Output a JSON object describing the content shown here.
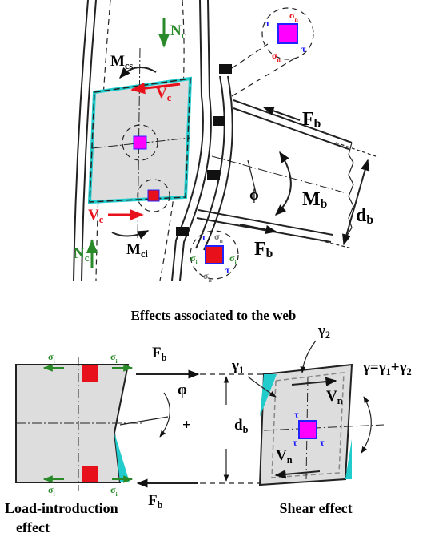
{
  "top_figure": {
    "labels": [
      [
        "N",
        "c"
      ],
      [
        "M",
        "cs"
      ],
      [
        "V",
        "c"
      ],
      [
        "σ",
        "n"
      ],
      [
        "τ"
      ],
      [
        "σ",
        "n"
      ],
      [
        "τ"
      ],
      [
        "F",
        "b"
      ],
      [
        "M",
        "b"
      ],
      [
        "ϕ"
      ],
      [
        "d",
        "b"
      ],
      [
        "V",
        "c"
      ],
      [
        "N",
        "c"
      ],
      [
        "M",
        "ci"
      ],
      [
        "F",
        "b"
      ],
      [
        "τ"
      ],
      [
        "σ",
        "n"
      ],
      [
        "σ",
        "i"
      ],
      [
        "σ",
        "i"
      ],
      [
        "τ"
      ],
      [
        "σ",
        "n"
      ]
    ]
  },
  "caption": "Effects associated to the web",
  "bottom_figure": {
    "labels": [
      [
        "σ",
        "i"
      ],
      [
        "σ",
        "i"
      ],
      [
        "σ",
        "i"
      ],
      [
        "σ",
        "i"
      ],
      [
        "F",
        "b"
      ],
      [
        "F",
        "b"
      ],
      [
        "φ"
      ],
      [
        "+"
      ],
      [
        "d",
        "b"
      ],
      [
        "γ",
        "2"
      ],
      [
        "γ",
        "1"
      ],
      [
        "V",
        "n"
      ],
      [
        "γ=γ",
        "1",
        "+γ",
        "2"
      ],
      [
        "V",
        "n"
      ],
      [
        "τ"
      ],
      [
        "τ"
      ],
      [
        "τ"
      ]
    ],
    "load_introduction_caption": [
      "Load-introduction",
      "effect"
    ],
    "shear_caption": "Shear effect"
  }
}
